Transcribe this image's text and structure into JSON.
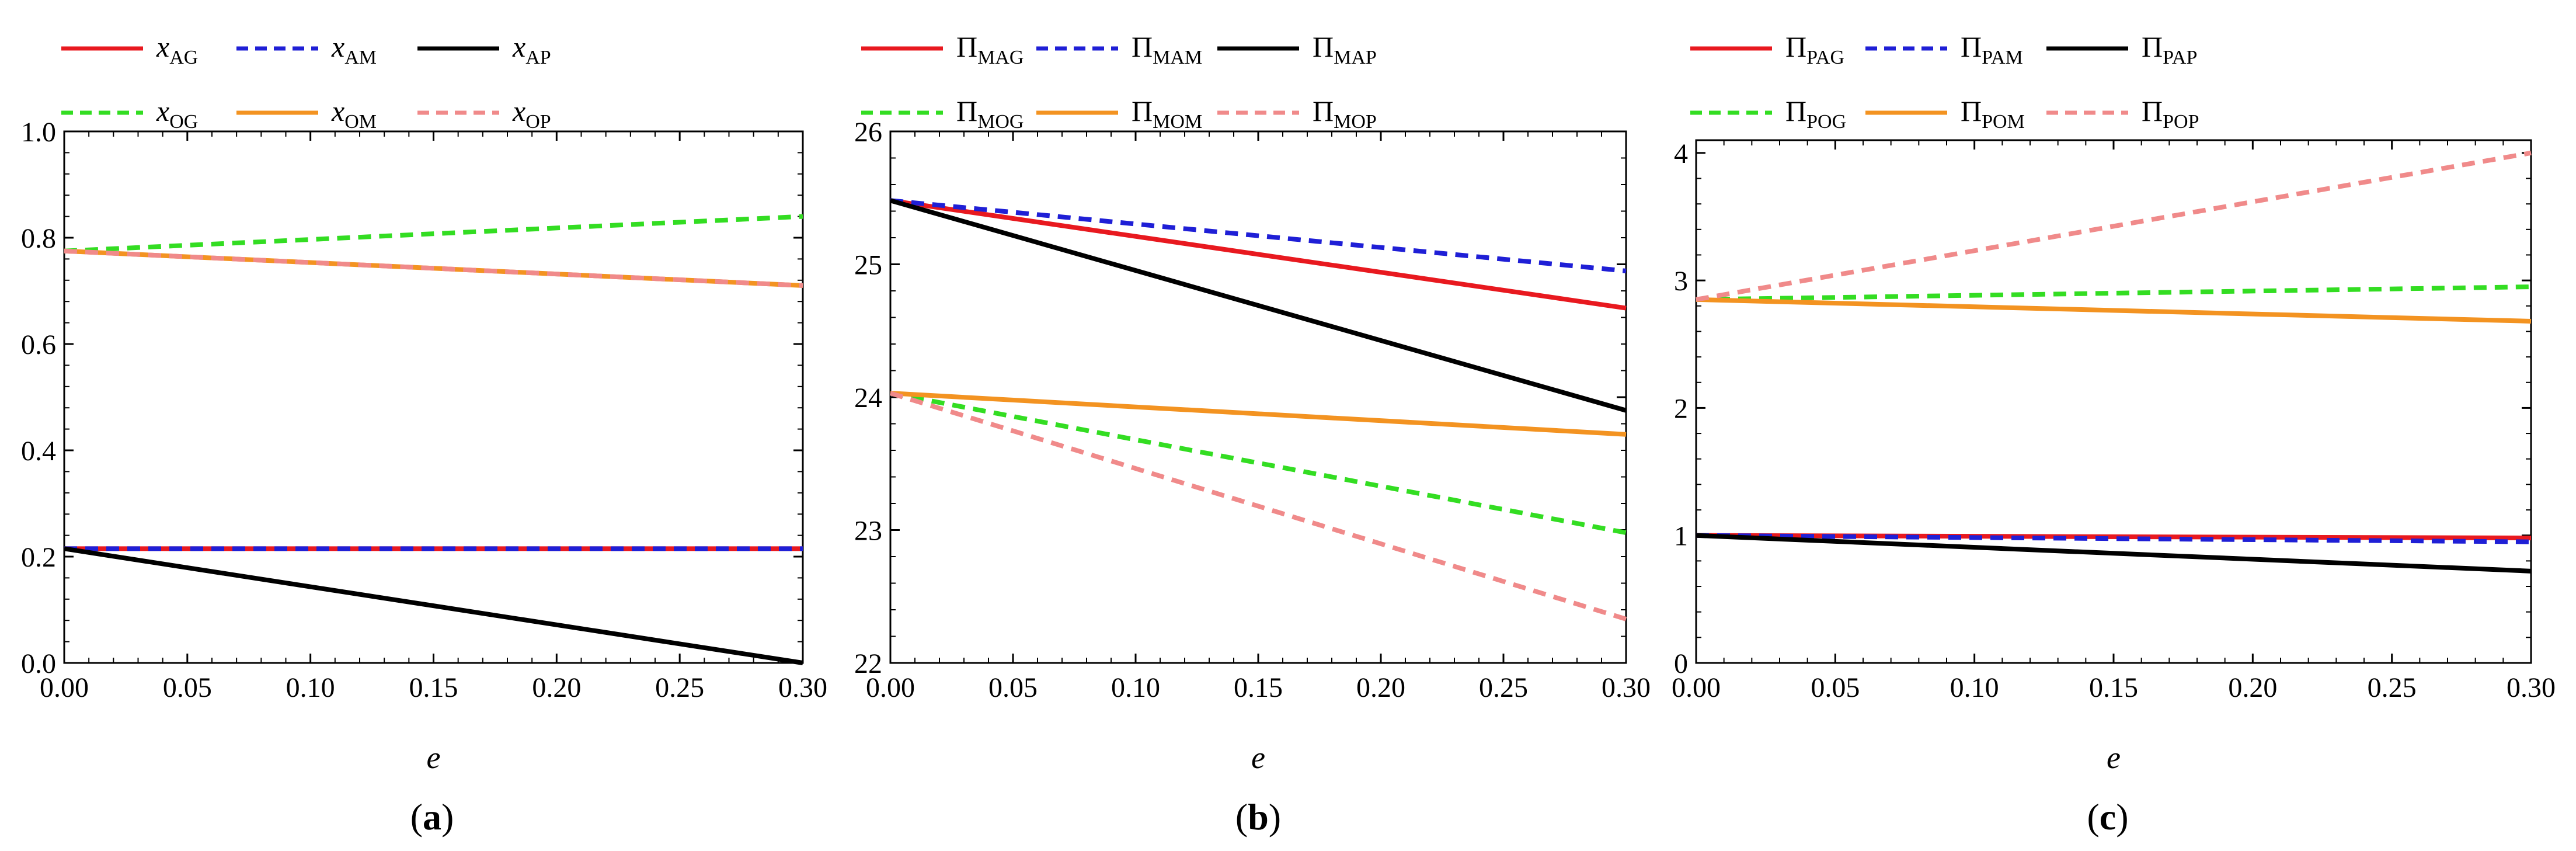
{
  "chart_data": [
    {
      "type": "line",
      "panel_label": "a",
      "xlabel": "e",
      "ylabel": "",
      "xlim": [
        0,
        0.3
      ],
      "ylim": [
        0,
        1.0
      ],
      "xticks": [
        "0.00",
        "0.05",
        "0.10",
        "0.15",
        "0.20",
        "0.25",
        "0.30"
      ],
      "yticks": [
        "0.0",
        "0.2",
        "0.4",
        "0.6",
        "0.8",
        "1.0"
      ],
      "series": [
        {
          "name_main": "x",
          "name_sub": "AG",
          "main_italic": true,
          "color": "#e8191f",
          "dash": "solid",
          "x": [
            0,
            0.3
          ],
          "y": [
            0.215,
            0.215
          ]
        },
        {
          "name_main": "x",
          "name_sub": "AM",
          "main_italic": true,
          "color": "#1f1fd6",
          "dash": "dashed",
          "x": [
            0,
            0.3
          ],
          "y": [
            0.215,
            0.215
          ]
        },
        {
          "name_main": "x",
          "name_sub": "AP",
          "main_italic": true,
          "color": "#000000",
          "dash": "solid",
          "x": [
            0,
            0.3
          ],
          "y": [
            0.215,
            0.0
          ]
        },
        {
          "name_main": "x",
          "name_sub": "OG",
          "main_italic": true,
          "color": "#33dd22",
          "dash": "dashed",
          "x": [
            0,
            0.3
          ],
          "y": [
            0.775,
            0.84
          ]
        },
        {
          "name_main": "x",
          "name_sub": "OM",
          "main_italic": true,
          "color": "#f39321",
          "dash": "solid",
          "x": [
            0,
            0.3
          ],
          "y": [
            0.775,
            0.71
          ]
        },
        {
          "name_main": "x",
          "name_sub": "OP",
          "main_italic": true,
          "color": "#f08a8a",
          "dash": "dashed",
          "x": [
            0,
            0.3
          ],
          "y": [
            0.775,
            0.71
          ]
        }
      ]
    },
    {
      "type": "line",
      "panel_label": "b",
      "xlabel": "e",
      "ylabel": "",
      "xlim": [
        0,
        0.3
      ],
      "ylim": [
        22,
        26
      ],
      "xticks": [
        "0.00",
        "0.05",
        "0.10",
        "0.15",
        "0.20",
        "0.25",
        "0.30"
      ],
      "yticks": [
        "22",
        "23",
        "24",
        "25",
        "26"
      ],
      "series": [
        {
          "name_main": "Π",
          "name_sub": "MAG",
          "main_italic": false,
          "color": "#e8191f",
          "dash": "solid",
          "x": [
            0,
            0.3
          ],
          "y": [
            25.48,
            24.67
          ]
        },
        {
          "name_main": "Π",
          "name_sub": "MAM",
          "main_italic": false,
          "color": "#1f1fd6",
          "dash": "dashed",
          "x": [
            0,
            0.3
          ],
          "y": [
            25.48,
            24.95
          ]
        },
        {
          "name_main": "Π",
          "name_sub": "MAP",
          "main_italic": false,
          "color": "#000000",
          "dash": "solid",
          "x": [
            0,
            0.3
          ],
          "y": [
            25.48,
            23.9
          ]
        },
        {
          "name_main": "Π",
          "name_sub": "MOG",
          "main_italic": false,
          "color": "#33dd22",
          "dash": "dashed",
          "x": [
            0,
            0.3
          ],
          "y": [
            24.03,
            22.98
          ]
        },
        {
          "name_main": "Π",
          "name_sub": "MOM",
          "main_italic": false,
          "color": "#f39321",
          "dash": "solid",
          "x": [
            0,
            0.3
          ],
          "y": [
            24.03,
            23.72
          ]
        },
        {
          "name_main": "Π",
          "name_sub": "MOP",
          "main_italic": false,
          "color": "#f08a8a",
          "dash": "dashed",
          "x": [
            0,
            0.3
          ],
          "y": [
            24.03,
            22.33
          ]
        }
      ]
    },
    {
      "type": "line",
      "panel_label": "c",
      "xlabel": "e",
      "ylabel": "",
      "xlim": [
        0,
        0.3
      ],
      "ylim": [
        0,
        4.1
      ],
      "xticks": [
        "0.00",
        "0.05",
        "0.10",
        "0.15",
        "0.20",
        "0.25",
        "0.30"
      ],
      "yticks": [
        "0",
        "1",
        "2",
        "3",
        "4"
      ],
      "series": [
        {
          "name_main": "Π",
          "name_sub": "PAG",
          "main_italic": false,
          "color": "#e8191f",
          "dash": "solid",
          "x": [
            0,
            0.3
          ],
          "y": [
            1.0,
            0.98
          ]
        },
        {
          "name_main": "Π",
          "name_sub": "PAM",
          "main_italic": false,
          "color": "#1f1fd6",
          "dash": "dashed",
          "x": [
            0,
            0.3
          ],
          "y": [
            1.0,
            0.95
          ]
        },
        {
          "name_main": "Π",
          "name_sub": "PAP",
          "main_italic": false,
          "color": "#000000",
          "dash": "solid",
          "x": [
            0,
            0.3
          ],
          "y": [
            1.0,
            0.72
          ]
        },
        {
          "name_main": "Π",
          "name_sub": "POG",
          "main_italic": false,
          "color": "#33dd22",
          "dash": "dashed",
          "x": [
            0,
            0.3
          ],
          "y": [
            2.85,
            2.95
          ]
        },
        {
          "name_main": "Π",
          "name_sub": "POM",
          "main_italic": false,
          "color": "#f39321",
          "dash": "solid",
          "x": [
            0,
            0.3
          ],
          "y": [
            2.85,
            2.68
          ]
        },
        {
          "name_main": "Π",
          "name_sub": "POP",
          "main_italic": false,
          "color": "#f08a8a",
          "dash": "dashed",
          "x": [
            0,
            0.3
          ],
          "y": [
            2.85,
            4.0
          ]
        }
      ]
    }
  ]
}
